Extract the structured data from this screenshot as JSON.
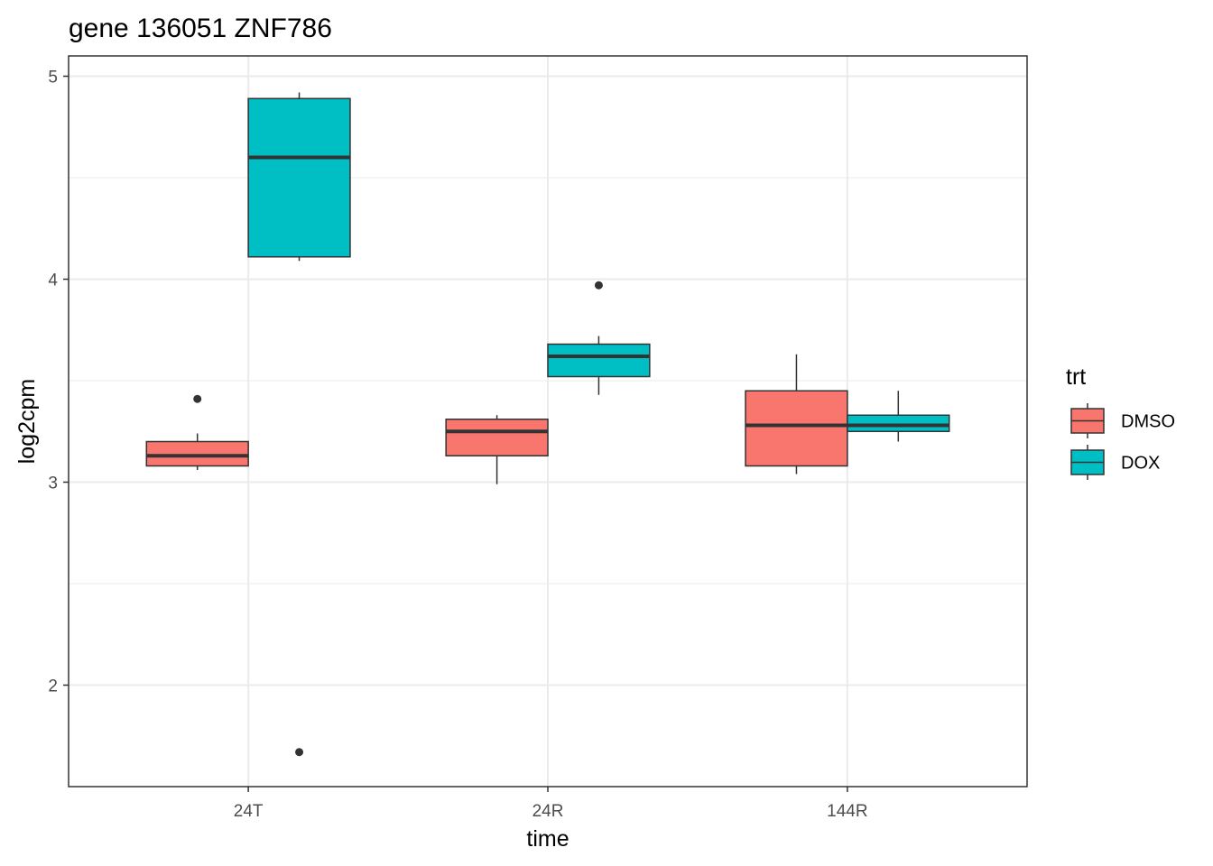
{
  "chart_data": {
    "type": "boxplot",
    "title": "gene 136051 ZNF786",
    "xlabel": "time",
    "ylabel": "log2cpm",
    "categories": [
      "24T",
      "24R",
      "144R"
    ],
    "ylim": [
      1.5,
      5.1
    ],
    "y_ticks": [
      2,
      3,
      4,
      5
    ],
    "grid": true,
    "legend": {
      "title": "trt",
      "placement": "right"
    },
    "series": [
      {
        "name": "DMSO",
        "color": "#F8766D",
        "boxes": [
          {
            "category": "24T",
            "whisker_low": 3.06,
            "q1": 3.08,
            "median": 3.13,
            "q3": 3.2,
            "whisker_high": 3.24,
            "outliers": [
              3.41
            ]
          },
          {
            "category": "24R",
            "whisker_low": 2.99,
            "q1": 3.13,
            "median": 3.25,
            "q3": 3.31,
            "whisker_high": 3.33,
            "outliers": []
          },
          {
            "category": "144R",
            "whisker_low": 3.04,
            "q1": 3.08,
            "median": 3.28,
            "q3": 3.45,
            "whisker_high": 3.63,
            "outliers": []
          }
        ]
      },
      {
        "name": "DOX",
        "color": "#00BFC4",
        "boxes": [
          {
            "category": "24T",
            "whisker_low": 4.09,
            "q1": 4.11,
            "median": 4.6,
            "q3": 4.89,
            "whisker_high": 4.92,
            "outliers": [
              1.67
            ]
          },
          {
            "category": "24R",
            "whisker_low": 3.43,
            "q1": 3.52,
            "median": 3.62,
            "q3": 3.68,
            "whisker_high": 3.72,
            "outliers": [
              3.97
            ]
          },
          {
            "category": "144R",
            "whisker_low": 3.2,
            "q1": 3.25,
            "median": 3.28,
            "q3": 3.33,
            "whisker_high": 3.45,
            "outliers": []
          }
        ]
      }
    ]
  }
}
